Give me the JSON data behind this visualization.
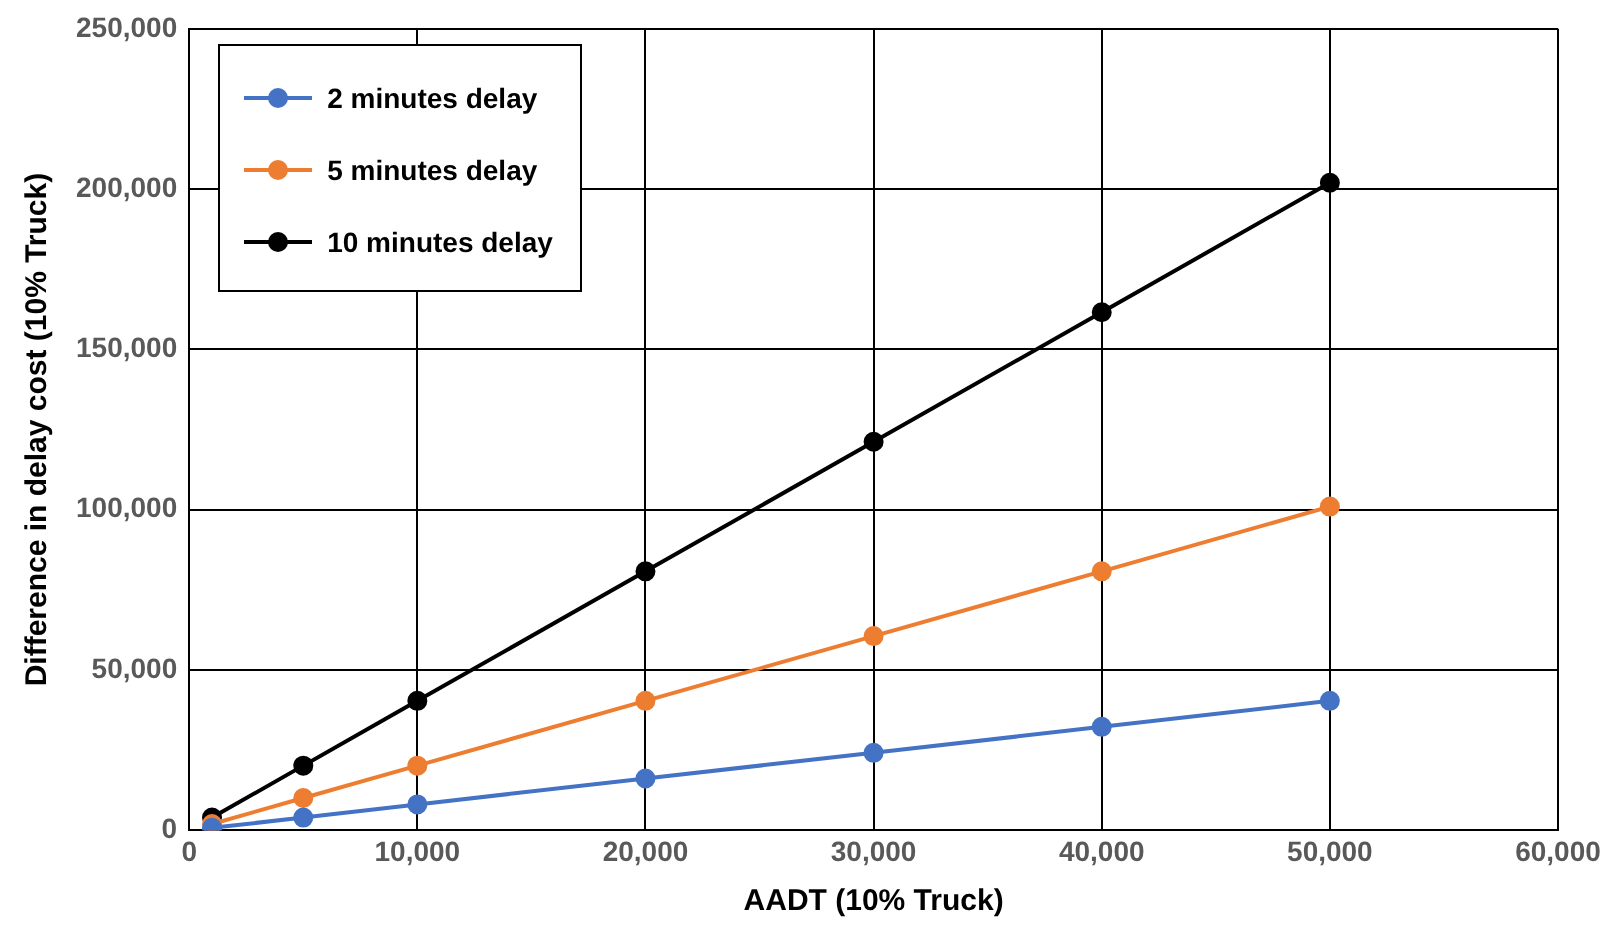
{
  "chart_data": {
    "type": "line",
    "xlabel": "AADT (10% Truck)",
    "ylabel": "Difference in delay cost (10% Truck)",
    "x": [
      1000,
      5000,
      10000,
      20000,
      30000,
      40000,
      50000
    ],
    "series": [
      {
        "name": "2 minutes delay",
        "color": "#4472c4",
        "values": [
          800,
          4000,
          8100,
          16200,
          24200,
          32300,
          40400
        ]
      },
      {
        "name": "5 minutes delay",
        "color": "#ed7d31",
        "values": [
          2000,
          10100,
          20200,
          40400,
          60600,
          80800,
          101000
        ]
      },
      {
        "name": "10 minutes delay",
        "color": "#000000",
        "values": [
          4000,
          20200,
          40400,
          80800,
          121200,
          161600,
          202000
        ]
      }
    ],
    "xlim": [
      0,
      60000
    ],
    "xticks": [
      {
        "value": 0,
        "label": "0"
      },
      {
        "value": 10000,
        "label": "10,000"
      },
      {
        "value": 20000,
        "label": "20,000"
      },
      {
        "value": 30000,
        "label": "30,000"
      },
      {
        "value": 40000,
        "label": "40,000"
      },
      {
        "value": 50000,
        "label": "50,000"
      },
      {
        "value": 60000,
        "label": "60,000"
      }
    ],
    "ylim": [
      0,
      250000
    ],
    "yticks": [
      {
        "value": 0,
        "label": "0"
      },
      {
        "value": 50000,
        "label": "50,000"
      },
      {
        "value": 100000,
        "label": "100,000"
      },
      {
        "value": 150000,
        "label": "150,000"
      },
      {
        "value": 200000,
        "label": "200,000"
      },
      {
        "value": 250000,
        "label": "250,000"
      }
    ],
    "grid": true,
    "legend": "top left",
    "marker": "circle",
    "line_style": "solid"
  }
}
